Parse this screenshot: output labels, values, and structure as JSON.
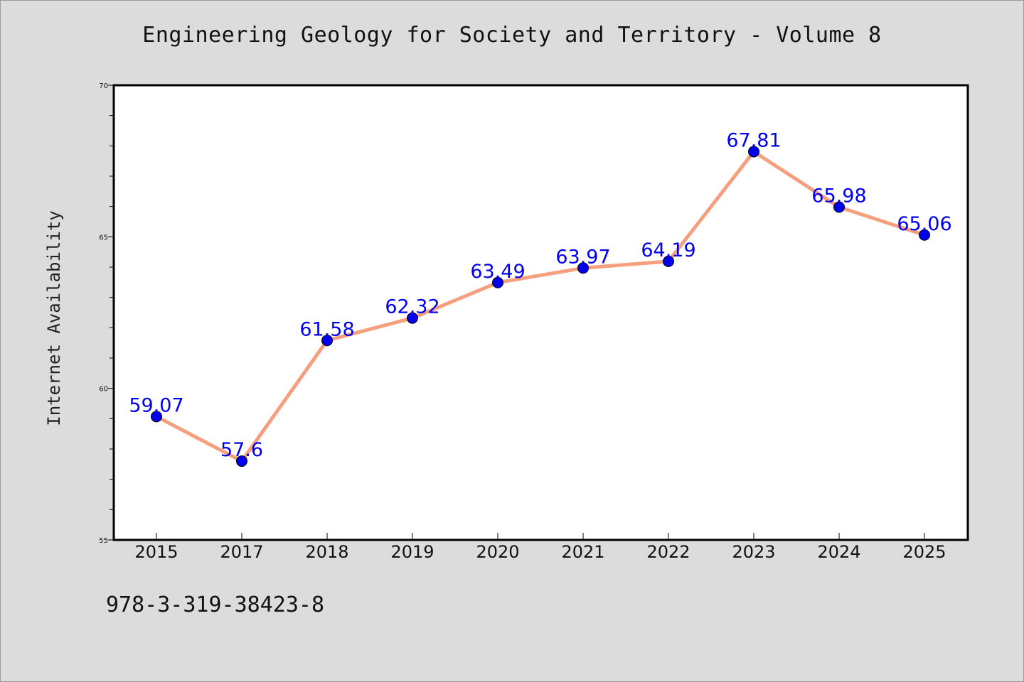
{
  "chart_data": {
    "type": "line",
    "title": "Engineering Geology for Society and Territory - Volume 8",
    "xlabel": "",
    "ylabel": "Internet Availability",
    "categories": [
      "2015",
      "2017",
      "2018",
      "2019",
      "2020",
      "2021",
      "2022",
      "2023",
      "2024",
      "2025"
    ],
    "series": [
      {
        "values": [
          59.07,
          57.6,
          61.58,
          62.32,
          63.49,
          63.97,
          64.19,
          67.81,
          65.98,
          65.06
        ]
      }
    ],
    "ylim": [
      55,
      70
    ],
    "y_major_ticks": [
      55,
      60,
      65,
      70
    ],
    "y_minor_step": 1,
    "grid": false,
    "legend": "none",
    "data_labels": true,
    "colors": {
      "line": "#f4a07f",
      "marker": "#0000ee",
      "data_label": "#0000ee",
      "background": "#dcdcdc",
      "plot_area": "#ffffff"
    }
  },
  "footer": {
    "isbn": "978-3-319-38423-8"
  }
}
